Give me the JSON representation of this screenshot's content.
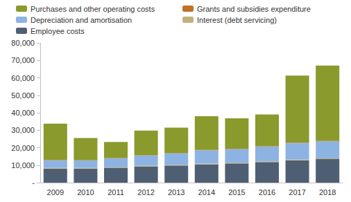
{
  "chart_data": {
    "type": "bar",
    "stacked": true,
    "legend": "top",
    "grid": false,
    "categories": [
      "2009",
      "2010",
      "2011",
      "2012",
      "2013",
      "2014",
      "2015",
      "2016",
      "2017",
      "2018"
    ],
    "ylim": [
      0,
      80000
    ],
    "yticks": [
      {
        "value": 0,
        "label": "-"
      },
      {
        "value": 10000,
        "label": "10,000"
      },
      {
        "value": 20000,
        "label": "20,000"
      },
      {
        "value": 30000,
        "label": "30,000"
      },
      {
        "value": 40000,
        "label": "40,000"
      },
      {
        "value": 50000,
        "label": "50,000"
      },
      {
        "value": 60000,
        "label": "60,000"
      },
      {
        "value": 70000,
        "label": "70,000"
      },
      {
        "value": 80000,
        "label": "80,000"
      }
    ],
    "series": [
      {
        "name": "Purchases and other operating costs",
        "color": "#8a9a2c",
        "values": [
          20800,
          12600,
          9100,
          14100,
          14600,
          19300,
          17400,
          18100,
          38300,
          43100
        ]
      },
      {
        "name": "Grants and subsidies expenditure",
        "color": "#c0712a",
        "values": [
          200,
          200,
          200,
          200,
          200,
          200,
          200,
          200,
          200,
          200
        ]
      },
      {
        "name": "Depreciation and amortisation",
        "color": "#8db3e2",
        "values": [
          4400,
          4300,
          5300,
          5800,
          6500,
          7600,
          7800,
          8500,
          9600,
          9800
        ]
      },
      {
        "name": "Interest (debt servicing)",
        "color": "#c4b07a",
        "values": [
          400,
          400,
          400,
          400,
          400,
          400,
          400,
          400,
          400,
          400
        ]
      },
      {
        "name": "Employee costs",
        "color": "#4f5f73",
        "values": [
          8000,
          8000,
          8300,
          9300,
          9800,
          10500,
          11000,
          11800,
          12800,
          13500
        ]
      }
    ]
  }
}
